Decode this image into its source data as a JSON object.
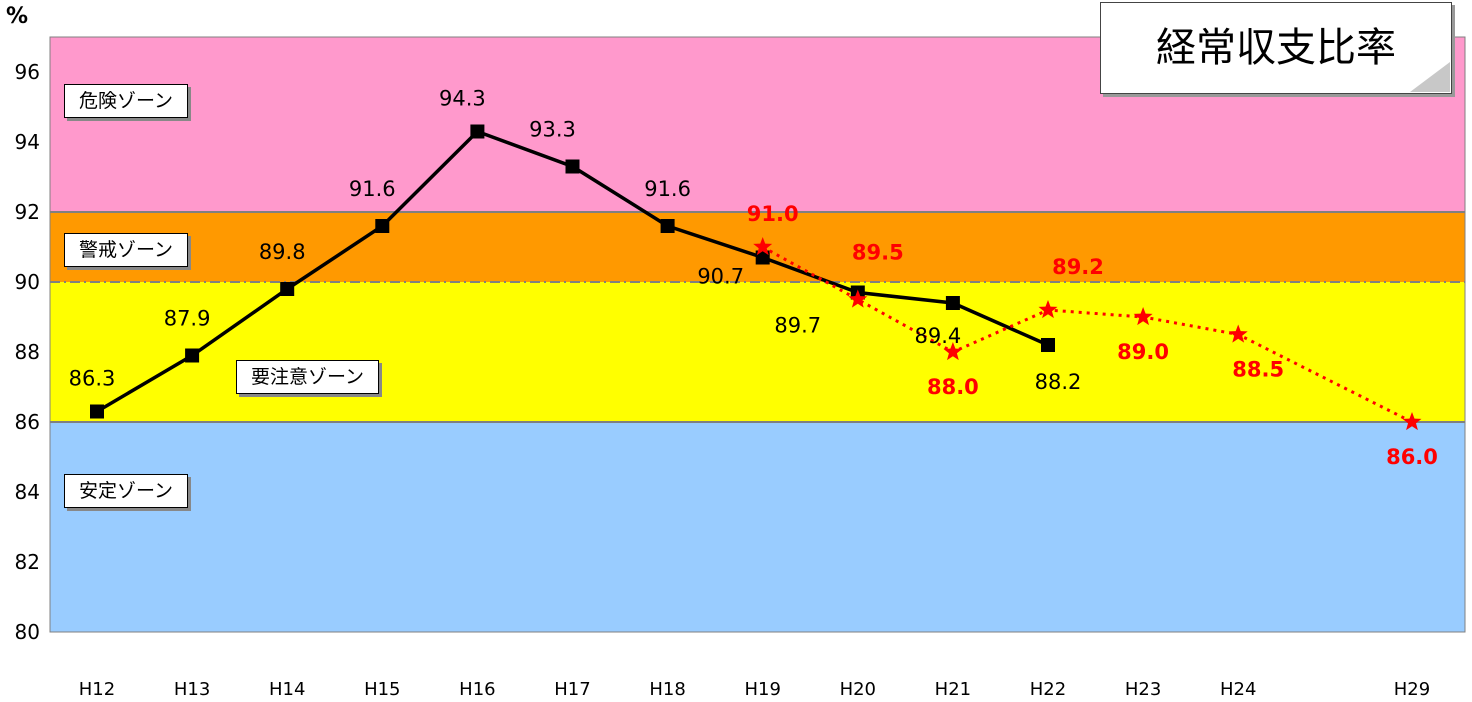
{
  "chart_data": {
    "type": "line",
    "title": "経常収支比率",
    "ylabel": "%",
    "ylim": [
      80,
      97
    ],
    "yticks": [
      "96",
      "94",
      "92",
      "90",
      "88",
      "86",
      "84",
      "82",
      "80"
    ],
    "categories": [
      "H12",
      "H13",
      "H14",
      "H15",
      "H16",
      "H17",
      "H18",
      "H19",
      "H20",
      "H21",
      "H22",
      "H23",
      "H24",
      "H29"
    ],
    "zones": [
      {
        "label": "危険ゾーン",
        "from": 92,
        "to": 97,
        "color": "#ff99cc"
      },
      {
        "label": "警戒ゾーン",
        "from": 90,
        "to": 92,
        "color": "#ff9900"
      },
      {
        "label": "要注意ゾーン",
        "from": 86,
        "to": 90,
        "color": "#ffff00"
      },
      {
        "label": "安定ゾーン",
        "from": 80,
        "to": 86,
        "color": "#99ccff"
      }
    ],
    "series": [
      {
        "style": "solid",
        "color": "#000000",
        "marker": "square",
        "x": [
          "H12",
          "H13",
          "H14",
          "H15",
          "H16",
          "H17",
          "H18",
          "H19",
          "H20",
          "H21",
          "H22"
        ],
        "values": [
          86.3,
          87.9,
          89.8,
          91.6,
          94.3,
          93.3,
          91.6,
          90.7,
          89.7,
          89.4,
          88.2
        ],
        "labels": [
          "86.3",
          "87.9",
          "89.8",
          "91.6",
          "94.3",
          "93.3",
          "91.6",
          "90.7",
          "89.7",
          "89.4",
          "88.2"
        ]
      },
      {
        "style": "dotted",
        "color": "#ff0000",
        "marker": "star",
        "x": [
          "H19",
          "H20",
          "H21",
          "H22",
          "H23",
          "H24",
          "H29"
        ],
        "values": [
          91.0,
          89.5,
          88.0,
          89.2,
          89.0,
          88.5,
          86.0
        ],
        "labels": [
          "91.0",
          "89.5",
          "88.0",
          "89.2",
          "89.0",
          "88.5",
          "86.0"
        ]
      }
    ]
  }
}
